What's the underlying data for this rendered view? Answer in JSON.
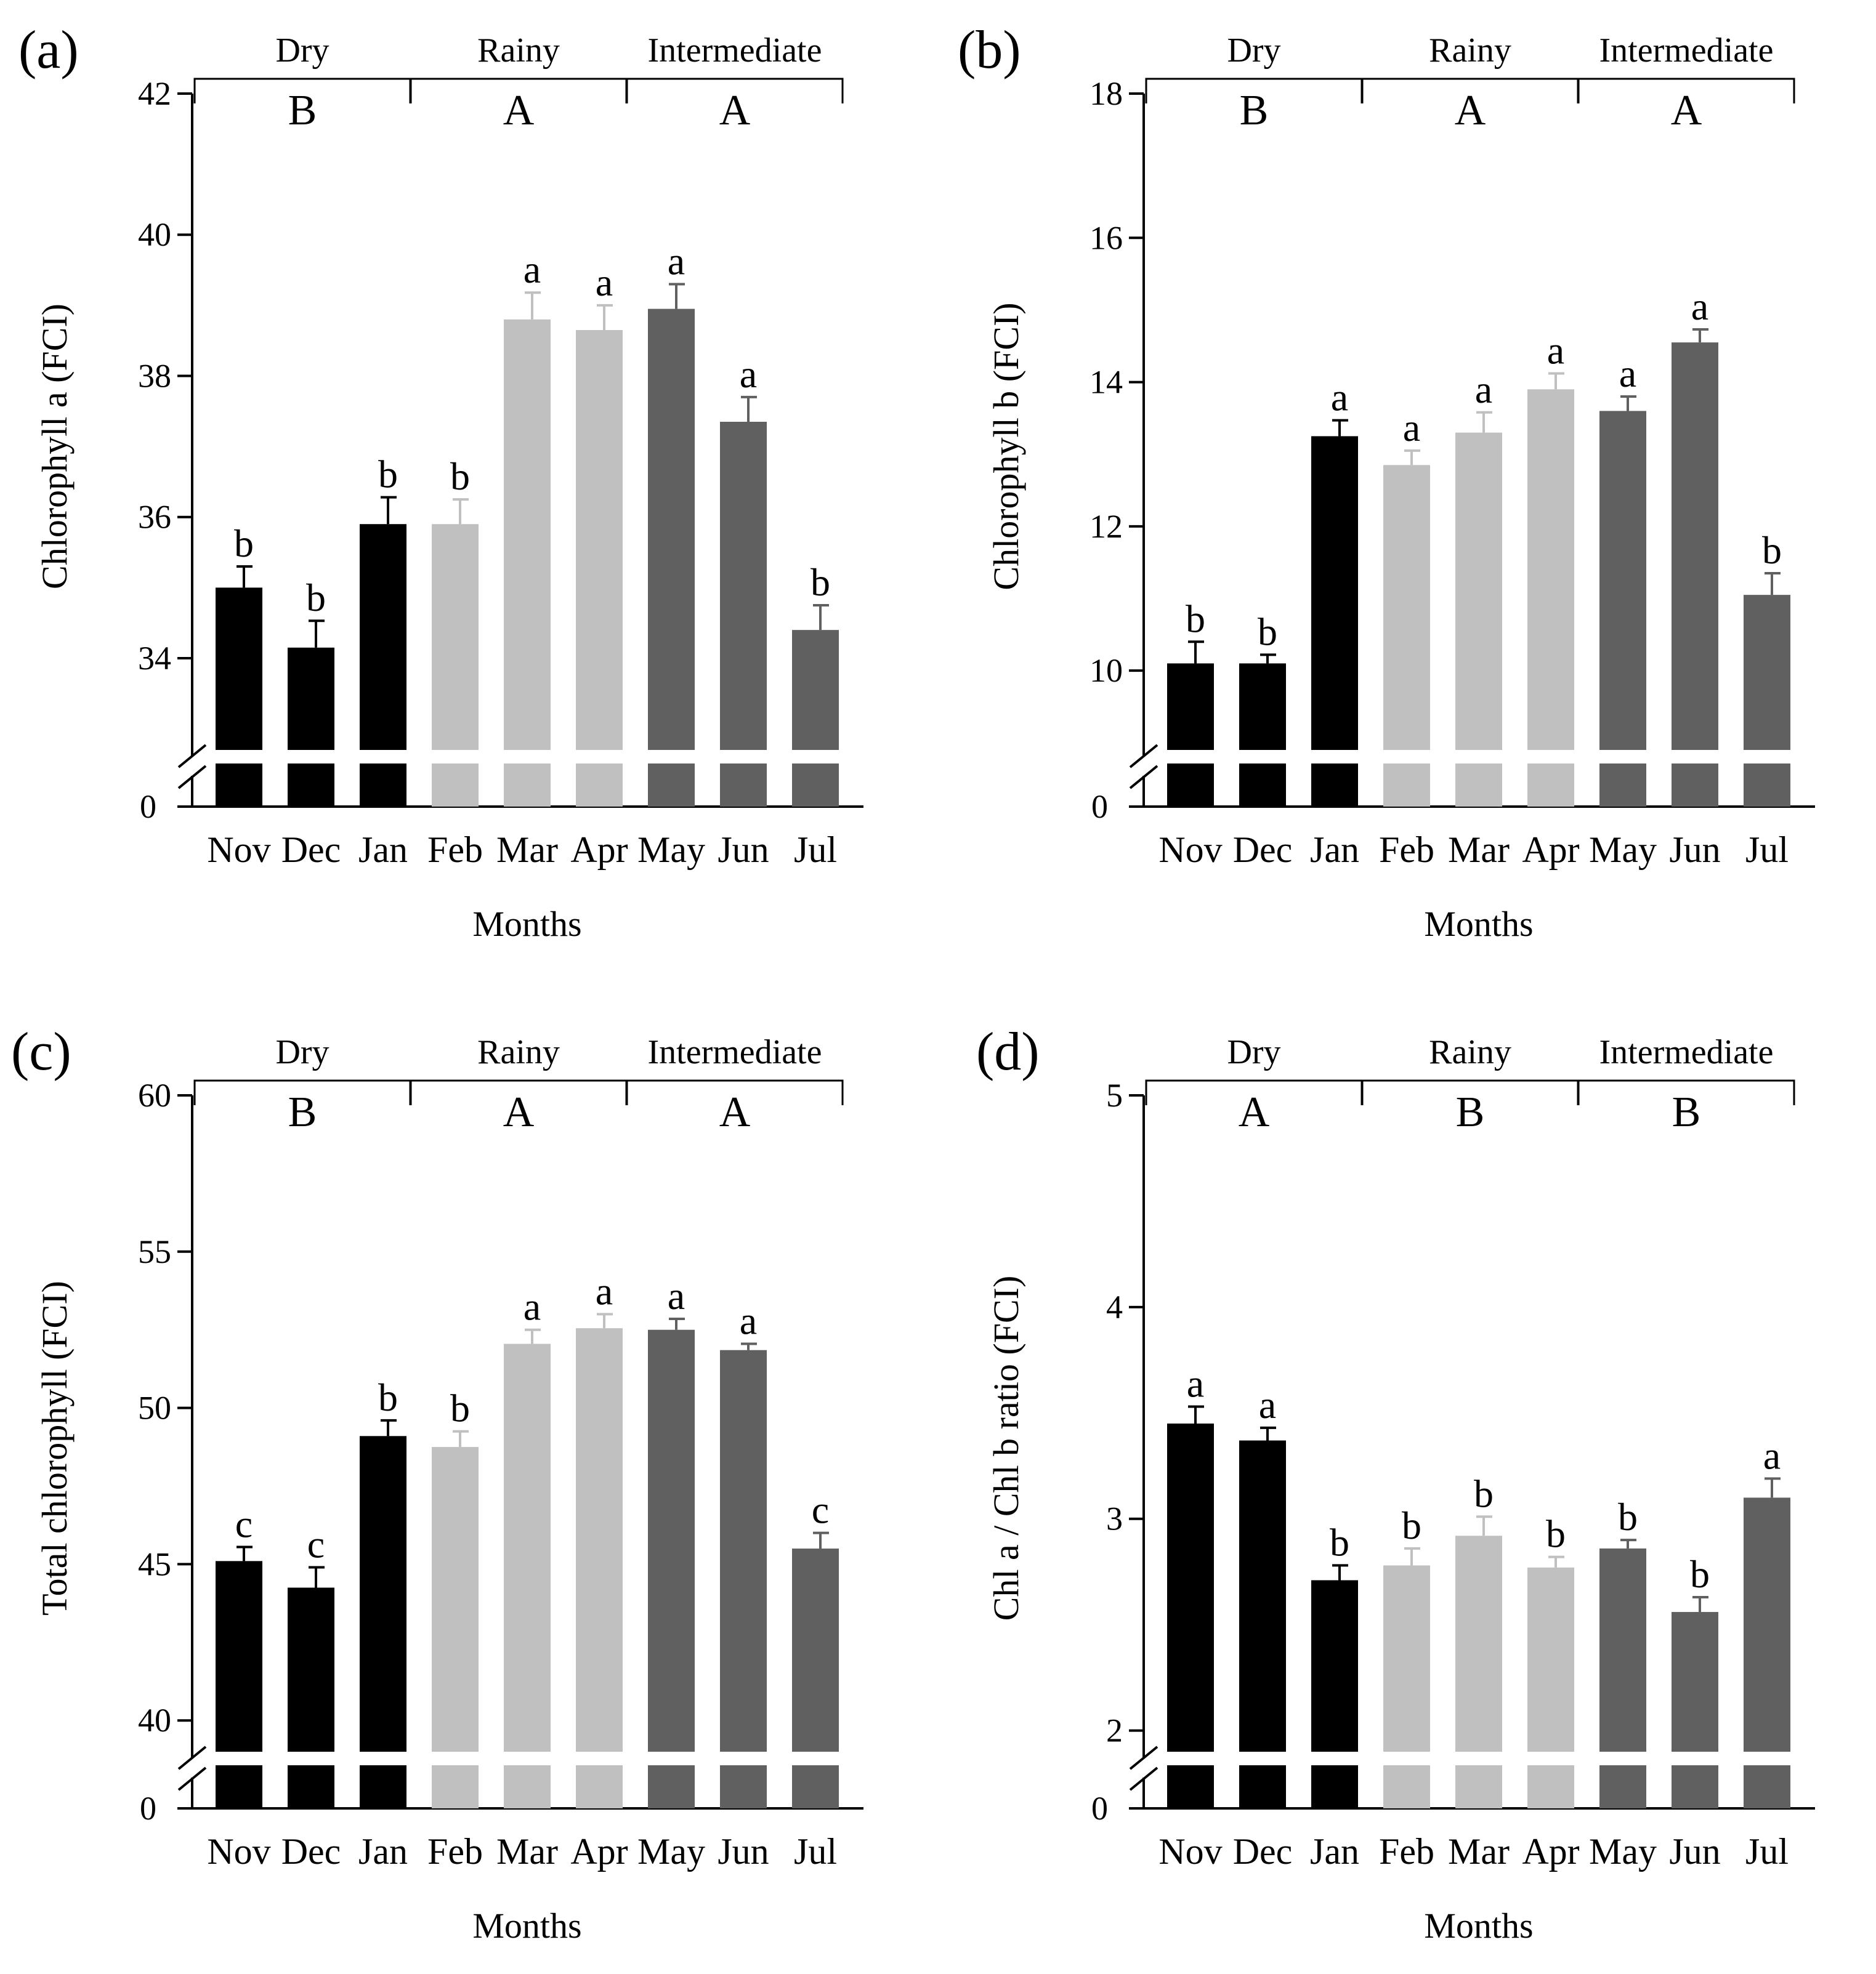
{
  "colors": {
    "dry": "#000000",
    "rainy": "#c0c0c0",
    "intermediate": "#606060",
    "axis": "#000000"
  },
  "chart_data": [
    {
      "panel": "(a)",
      "type": "bar",
      "ylabel": "Chlorophyll a (FCI)",
      "xlabel": "Months",
      "ylim_broken": [
        32.7,
        42
      ],
      "yticks": [
        34,
        36,
        38,
        40,
        42
      ],
      "ybreak_label": "0",
      "categories": [
        "Nov",
        "Dec",
        "Jan",
        "Feb",
        "Mar",
        "Apr",
        "May",
        "Jun",
        "Jul"
      ],
      "values": [
        35.0,
        34.15,
        35.9,
        35.9,
        38.8,
        38.65,
        38.95,
        37.35,
        34.4
      ],
      "errors": [
        0.3,
        0.38,
        0.38,
        0.35,
        0.38,
        0.35,
        0.35,
        0.35,
        0.35
      ],
      "letters": [
        "b",
        "b",
        "b",
        "b",
        "a",
        "a",
        "a",
        "a",
        "b"
      ],
      "seasons": [
        {
          "name": "Dry",
          "letter": "B",
          "months": [
            0,
            2
          ]
        },
        {
          "name": "Rainy",
          "letter": "A",
          "months": [
            3,
            5
          ]
        },
        {
          "name": "Intermediate",
          "letter": "A",
          "months": [
            6,
            8
          ]
        }
      ]
    },
    {
      "panel": "(b)",
      "type": "bar",
      "ylabel": "Chlorophyll b (FCI)",
      "xlabel": "Months",
      "ylim_broken": [
        8.9,
        18
      ],
      "yticks": [
        10,
        12,
        14,
        16,
        18
      ],
      "ybreak_label": "0",
      "categories": [
        "Nov",
        "Dec",
        "Jan",
        "Feb",
        "Mar",
        "Apr",
        "May",
        "Jun",
        "Jul"
      ],
      "values": [
        10.1,
        10.1,
        13.25,
        12.85,
        13.3,
        13.9,
        13.6,
        14.55,
        11.05
      ],
      "errors": [
        0.3,
        0.12,
        0.22,
        0.2,
        0.28,
        0.22,
        0.2,
        0.18,
        0.3
      ],
      "letters": [
        "b",
        "b",
        "a",
        "a",
        "a",
        "a",
        "a",
        "a",
        "b"
      ],
      "seasons": [
        {
          "name": "Dry",
          "letter": "B",
          "months": [
            0,
            2
          ]
        },
        {
          "name": "Rainy",
          "letter": "A",
          "months": [
            3,
            5
          ]
        },
        {
          "name": "Intermediate",
          "letter": "A",
          "months": [
            6,
            8
          ]
        }
      ]
    },
    {
      "panel": "(c)",
      "type": "bar",
      "ylabel": "Total chlorophyll (FCI)",
      "xlabel": "Months",
      "ylim_broken": [
        39.0,
        60
      ],
      "yticks": [
        40,
        45,
        50,
        55,
        60
      ],
      "ybreak_label": "0",
      "categories": [
        "Nov",
        "Dec",
        "Jan",
        "Feb",
        "Mar",
        "Apr",
        "May",
        "Jun",
        "Jul"
      ],
      "values": [
        45.1,
        44.25,
        49.1,
        48.75,
        52.05,
        52.55,
        52.5,
        51.85,
        45.5
      ],
      "errors": [
        0.45,
        0.65,
        0.5,
        0.5,
        0.45,
        0.45,
        0.35,
        0.2,
        0.5
      ],
      "letters": [
        "c",
        "c",
        "b",
        "b",
        "a",
        "a",
        "a",
        "a",
        "c"
      ],
      "seasons": [
        {
          "name": "Dry",
          "letter": "B",
          "months": [
            0,
            2
          ]
        },
        {
          "name": "Rainy",
          "letter": "A",
          "months": [
            3,
            5
          ]
        },
        {
          "name": "Intermediate",
          "letter": "A",
          "months": [
            6,
            8
          ]
        }
      ]
    },
    {
      "panel": "(d)",
      "type": "bar",
      "ylabel": "Chl a / Chl b ratio (FCI)",
      "xlabel": "Months",
      "ylim_broken": [
        1.9,
        5
      ],
      "yticks": [
        2,
        3,
        4,
        5
      ],
      "ybreak_label": "0",
      "categories": [
        "Nov",
        "Dec",
        "Jan",
        "Feb",
        "Mar",
        "Apr",
        "May",
        "Jun",
        "Jul"
      ],
      "values": [
        3.45,
        3.37,
        2.71,
        2.78,
        2.92,
        2.77,
        2.86,
        2.56,
        3.1
      ],
      "errors": [
        0.08,
        0.06,
        0.07,
        0.08,
        0.09,
        0.05,
        0.04,
        0.07,
        0.09
      ],
      "letters": [
        "a",
        "a",
        "b",
        "b",
        "b",
        "b",
        "b",
        "b",
        "a"
      ],
      "seasons": [
        {
          "name": "Dry",
          "letter": "A",
          "months": [
            0,
            2
          ]
        },
        {
          "name": "Rainy",
          "letter": "B",
          "months": [
            3,
            5
          ]
        },
        {
          "name": "Intermediate",
          "letter": "B",
          "months": [
            6,
            8
          ]
        }
      ]
    }
  ]
}
